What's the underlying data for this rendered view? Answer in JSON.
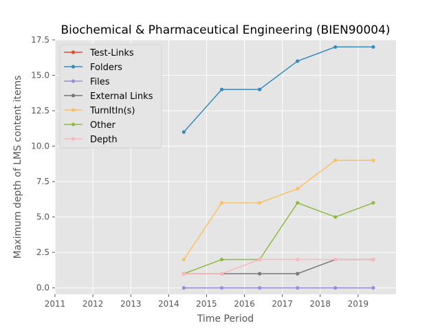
{
  "chart_data": {
    "type": "line",
    "title": "Biochemical & Pharmaceutical Engineering (BIEN90004)",
    "xlabel": "Time Period",
    "ylabel": "Maximum depth of LMS content items",
    "xlim": [
      2011,
      2020
    ],
    "ylim": [
      -0.45,
      17.5
    ],
    "xticks": [
      "2011",
      "2012",
      "2013",
      "2014",
      "2015",
      "2016",
      "2017",
      "2018",
      "2019"
    ],
    "yticks": [
      "0.0",
      "2.5",
      "5.0",
      "7.5",
      "10.0",
      "12.5",
      "15.0",
      "17.5"
    ],
    "grid": true,
    "legend_position": "top-left",
    "x": [
      2014.4,
      2015.4,
      2016.4,
      2017.4,
      2018.4,
      2019.4
    ],
    "series": [
      {
        "name": "Test-Links",
        "color": "#E24A33",
        "values": [
          null,
          null,
          null,
          null,
          null,
          null
        ]
      },
      {
        "name": "Folders",
        "color": "#348ABD",
        "values": [
          11,
          14,
          14,
          16,
          17,
          17
        ]
      },
      {
        "name": "Files",
        "color": "#988ED5",
        "values": [
          0,
          0,
          0,
          0,
          0,
          0
        ]
      },
      {
        "name": "External Links",
        "color": "#777777",
        "values": [
          1,
          1,
          1,
          1,
          2,
          2
        ]
      },
      {
        "name": "TurnItIn(s)",
        "color": "#FBC15E",
        "values": [
          2,
          6,
          6,
          7,
          9,
          9
        ]
      },
      {
        "name": "Other",
        "color": "#8EBA42",
        "values": [
          1,
          2,
          2,
          6,
          5,
          6
        ]
      },
      {
        "name": "Depth",
        "color": "#FFB5B8",
        "values": [
          1,
          1,
          2,
          2,
          2,
          2
        ]
      }
    ]
  }
}
